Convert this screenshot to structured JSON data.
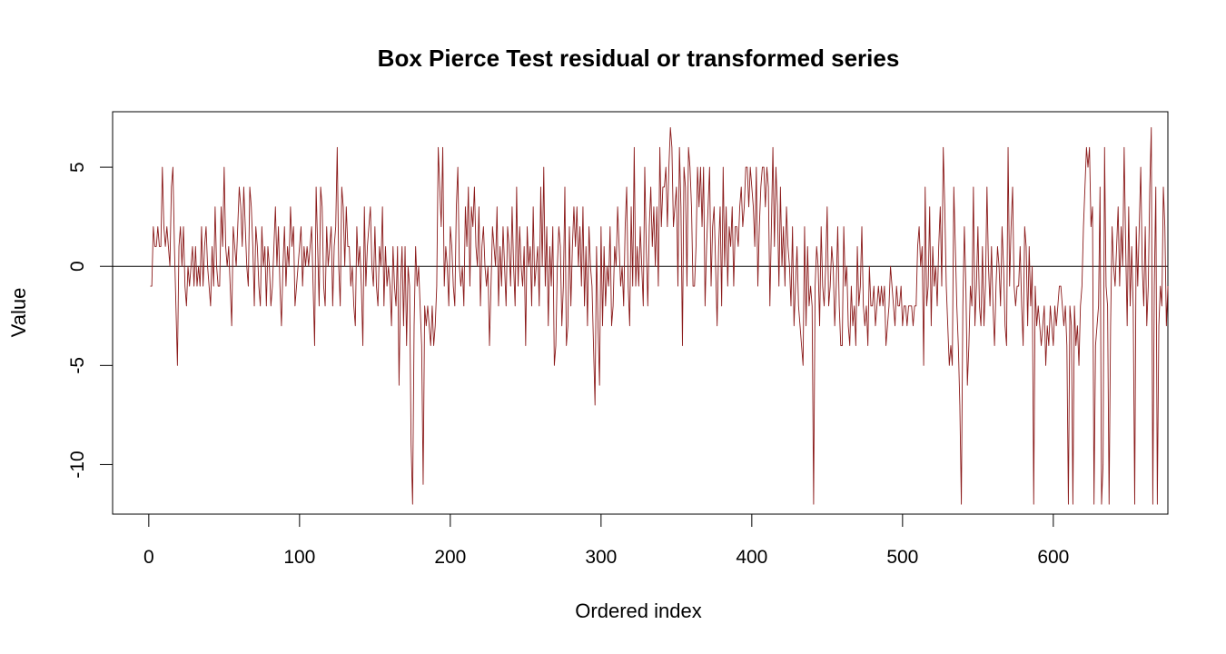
{
  "chart_data": {
    "type": "line",
    "title": "Box Pierce Test residual or transformed series",
    "xlabel": "Ordered index",
    "ylabel": "Value",
    "xlim": [
      -24,
      676
    ],
    "ylim": [
      -12.5,
      7.8
    ],
    "x_ticks": [
      0,
      100,
      200,
      300,
      400,
      500,
      600
    ],
    "y_ticks": [
      -10,
      -5,
      0,
      5
    ],
    "reference_line_y": 0,
    "grid": false,
    "series": [
      {
        "color": "#8b1a1a",
        "x_start": 1,
        "values": [
          -1,
          -1,
          2,
          1,
          1,
          2,
          1,
          1,
          5,
          2,
          1,
          2,
          1,
          0,
          4,
          5,
          1,
          -2,
          -5,
          1,
          2,
          0,
          2,
          -1,
          -2,
          0,
          -1,
          0,
          1,
          -1,
          1,
          -1,
          0,
          -1,
          2,
          -1,
          1,
          2,
          0,
          -1,
          -2,
          1,
          -1,
          3,
          0,
          -1,
          -1,
          3,
          1,
          5,
          1,
          0,
          1,
          -1,
          -3,
          2,
          1,
          0,
          2,
          4,
          3,
          1,
          4,
          2,
          0,
          -1,
          4,
          3,
          1,
          -2,
          2,
          1,
          -1,
          -2,
          2,
          0,
          1,
          -2,
          1,
          0,
          -2,
          -1,
          1,
          3,
          0,
          2,
          -1,
          -3,
          0,
          2,
          -1,
          1,
          0,
          3,
          1,
          2,
          -2,
          -1,
          0,
          1,
          2,
          -1,
          1,
          0,
          1,
          0,
          1,
          2,
          -1,
          -4,
          4,
          1,
          -2,
          4,
          3,
          -1,
          -2,
          2,
          0,
          1,
          2,
          -2,
          1,
          2,
          6,
          0,
          -2,
          4,
          3,
          0,
          3,
          1,
          1,
          -1,
          0,
          -2,
          -3,
          2,
          0,
          1,
          -1,
          -4,
          3,
          -1,
          1,
          2,
          3,
          0,
          -1,
          2,
          -1,
          -2,
          1,
          0,
          3,
          -2,
          1,
          -1,
          0,
          -1,
          -3,
          1,
          -1,
          -2,
          1,
          -6,
          -1,
          1,
          -3,
          1,
          -4,
          0,
          -1,
          -9,
          -12,
          -3,
          1,
          -1,
          0,
          -2,
          -4,
          -11,
          -2,
          -3,
          -2,
          -3,
          -4,
          -2,
          -4,
          -3,
          -1,
          6,
          4,
          2,
          6,
          -1,
          1,
          0,
          -2,
          2,
          1,
          -1,
          -2,
          3,
          5,
          0,
          -1,
          0,
          -2,
          3,
          1,
          4,
          -1,
          3,
          2,
          4,
          1,
          0,
          3,
          -2,
          1,
          2,
          0,
          -1,
          0,
          -4,
          -1,
          2,
          1,
          0,
          3,
          -2,
          1,
          -1,
          2,
          0,
          -2,
          2,
          1,
          -1,
          3,
          0,
          -2,
          4,
          -1,
          2,
          0,
          -1,
          1,
          -4,
          2,
          0,
          1,
          -2,
          3,
          -1,
          0,
          1,
          -2,
          4,
          0,
          5,
          -1,
          2,
          -3,
          1,
          -1,
          2,
          -5,
          -4,
          0,
          2,
          1,
          -3,
          -1,
          4,
          -4,
          -3,
          2,
          -2,
          1,
          3,
          1,
          3,
          0,
          2,
          -1,
          3,
          -2,
          1,
          -3,
          2,
          0,
          -1,
          -4,
          -7,
          1,
          -3,
          -6,
          2,
          -3,
          1,
          -2,
          0,
          -1,
          2,
          -3,
          -2,
          1,
          0,
          3,
          1,
          -1,
          0,
          -2,
          2,
          4,
          -1,
          -3,
          3,
          -1,
          6,
          -1,
          1,
          -1,
          2,
          0,
          -2,
          5,
          1,
          -2,
          2,
          4,
          1,
          3,
          0,
          3,
          -1,
          6,
          2,
          4,
          4,
          5,
          2,
          5,
          7,
          6,
          2,
          3,
          4,
          -1,
          6,
          3,
          -4,
          5,
          4,
          -1,
          6,
          5,
          3,
          -1,
          -1,
          1,
          5,
          3,
          5,
          2,
          5,
          -2,
          1,
          3,
          5,
          -1,
          2,
          3,
          0,
          -3,
          1,
          3,
          -2,
          5,
          0,
          3,
          -1,
          2,
          1,
          3,
          -1,
          2,
          2,
          1,
          3,
          4,
          2,
          3,
          5,
          5,
          3,
          5,
          4,
          3,
          1,
          5,
          -1,
          2,
          4,
          5,
          5,
          3,
          5,
          4,
          -2,
          2,
          6,
          1,
          5,
          3,
          -1,
          4,
          0,
          2,
          -1,
          3,
          1,
          0,
          -2,
          2,
          -3,
          -1,
          1,
          -2,
          -3,
          -4,
          -5,
          2,
          -3,
          1,
          -2,
          -1,
          -2,
          -12,
          -1,
          1,
          0,
          -3,
          2,
          -1,
          -2,
          0,
          3,
          -2,
          -1,
          1,
          0,
          -3,
          -1,
          2,
          -2,
          -4,
          -4,
          2,
          -1,
          0,
          -3,
          -4,
          -1,
          -3,
          -2,
          -4,
          1,
          -2,
          -1,
          2,
          -2,
          -3,
          -2,
          -4,
          0,
          -2,
          -2,
          -1,
          -3,
          -2,
          -1,
          -2,
          -1,
          -2,
          -1,
          -4,
          -3,
          -2,
          0,
          -1,
          -2,
          -3,
          -1,
          -2,
          -2,
          -1,
          -3,
          -2,
          -2,
          -3,
          -2,
          -2,
          -2,
          -3,
          -2,
          -2,
          1,
          2,
          0,
          1,
          -5,
          4,
          -2,
          -1,
          3,
          -3,
          1,
          -1,
          0,
          -2,
          1,
          3,
          -1,
          6,
          3,
          -1,
          -3,
          -5,
          -4,
          -5,
          4,
          1,
          -2,
          -4,
          -7,
          -12,
          -2,
          2,
          -1,
          -6,
          -4,
          -1,
          -2,
          4,
          -3,
          -1,
          2,
          -2,
          -3,
          1,
          -3,
          -1,
          4,
          0,
          -2,
          1,
          -2,
          -4,
          -1,
          1,
          0,
          -2,
          2,
          0,
          -3,
          -4,
          6,
          -1,
          2,
          4,
          -1,
          -2,
          -1,
          -1,
          1,
          -2,
          -4,
          2,
          1,
          -3,
          1,
          -2,
          0,
          -12,
          -1,
          -3,
          -2,
          -3,
          -4,
          -3,
          -2,
          -5,
          -3,
          -4,
          -2,
          -3,
          -4,
          -2,
          -3,
          -2,
          -1,
          -1,
          -2,
          -3,
          -2,
          -4,
          -12,
          -2,
          -3,
          -12,
          -2,
          -4,
          -3,
          -5,
          -2,
          -1,
          2,
          4,
          6,
          5,
          6,
          2,
          3,
          -12,
          -4,
          -3,
          -2,
          4,
          -12,
          -10,
          6,
          -1,
          -2,
          -12,
          -3,
          2,
          0,
          -1,
          1,
          3,
          -1,
          2,
          0,
          6,
          1,
          -3,
          3,
          -2,
          1,
          -2,
          -12,
          2,
          -1,
          2,
          5,
          0,
          -2,
          2,
          -3,
          -1,
          4,
          7,
          -12,
          -1,
          4,
          -12,
          -3,
          -1,
          -2,
          4,
          2,
          -3,
          -1
        ]
      }
    ]
  }
}
